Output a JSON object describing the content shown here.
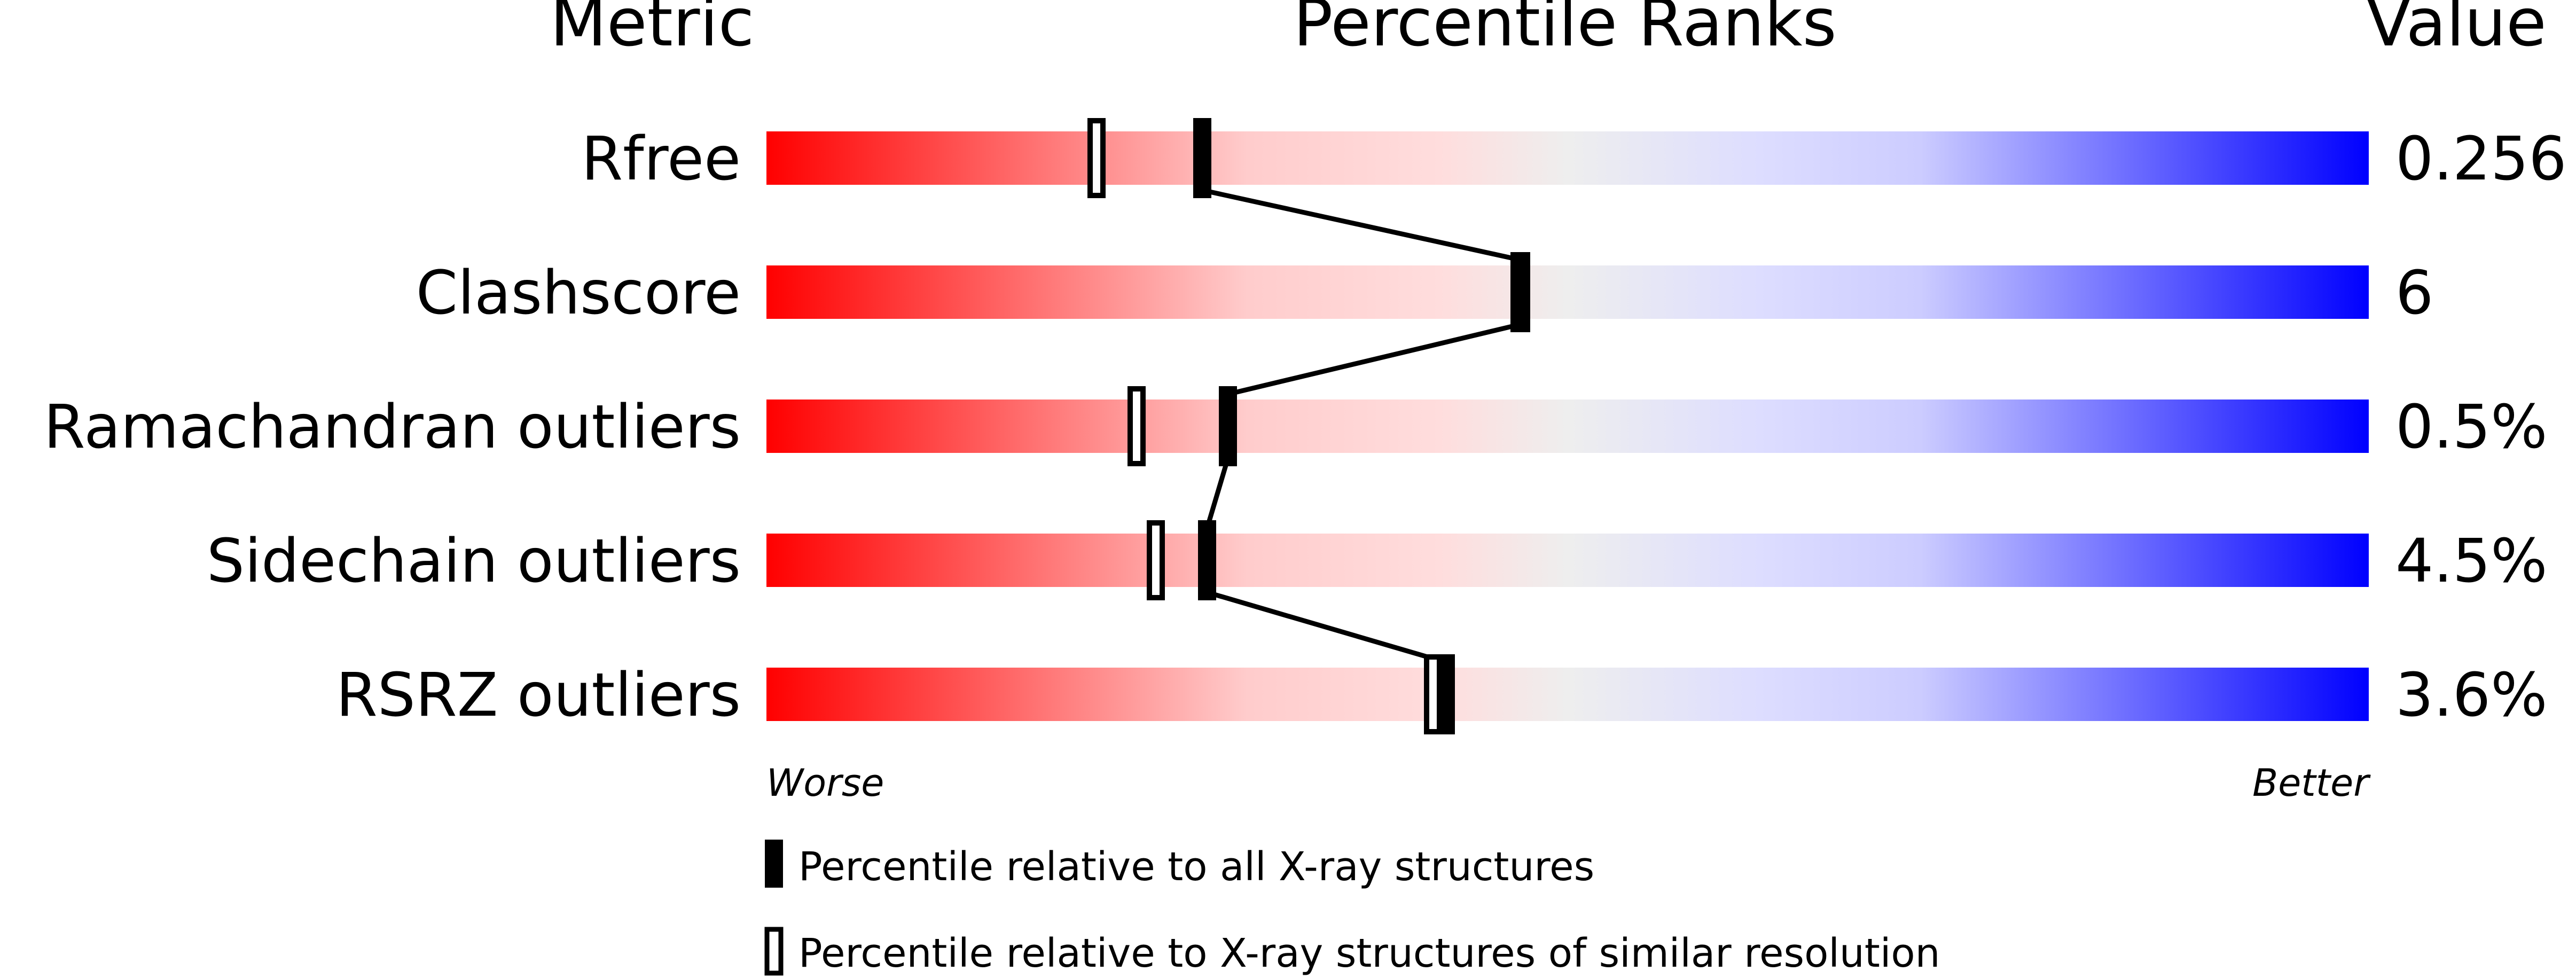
{
  "chart_data": {
    "type": "percentile-bar",
    "headers": {
      "metric": "Metric",
      "ranks": "Percentile Ranks",
      "value": "Value"
    },
    "xlim": [
      0,
      100
    ],
    "axis_labels": {
      "worse": "Worse",
      "better": "Better"
    },
    "gradient_colors": [
      "#ff0000",
      "#ffdddd",
      "#eeeeee",
      "#ddddff",
      "#0000ff"
    ],
    "rows": [
      {
        "metric": "Rfree",
        "value": "0.256",
        "percentile_all": 27.2,
        "percentile_similar": 20.6
      },
      {
        "metric": "Clashscore",
        "value": "6",
        "percentile_all": 47.1,
        "percentile_similar": 47.0
      },
      {
        "metric": "Ramachandran outliers",
        "value": "0.5%",
        "percentile_all": 28.8,
        "percentile_similar": 23.1
      },
      {
        "metric": "Sidechain outliers",
        "value": "4.5%",
        "percentile_all": 27.5,
        "percentile_similar": 24.3
      },
      {
        "metric": "RSRZ outliers",
        "value": "3.6%",
        "percentile_all": 42.4,
        "percentile_similar": 41.6
      }
    ],
    "legend": {
      "all": "Percentile relative to all X-ray structures",
      "similar": "Percentile relative to X-ray structures of similar resolution"
    }
  }
}
